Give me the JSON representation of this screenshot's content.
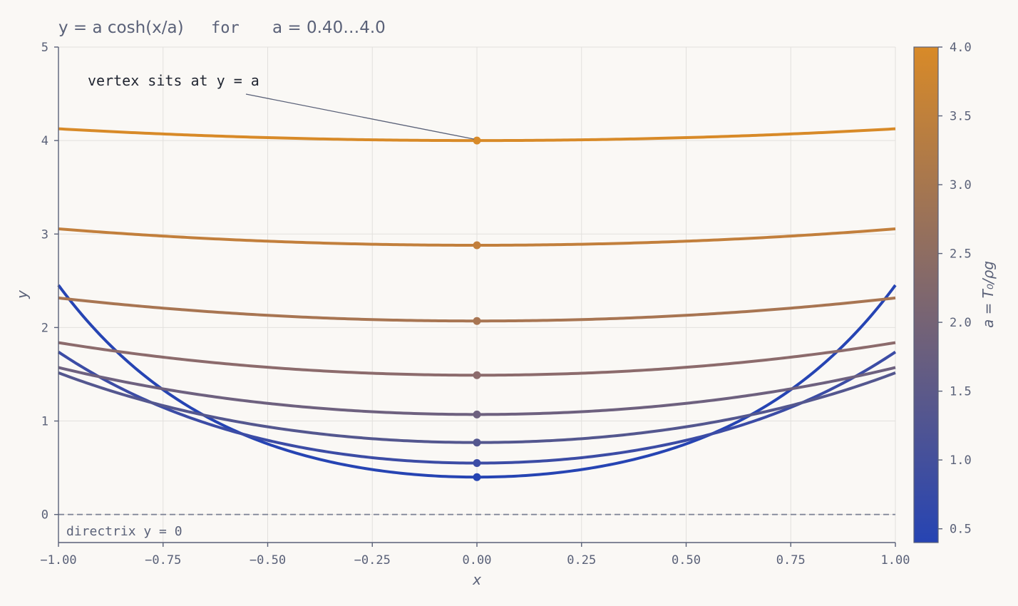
{
  "title": {
    "formula": "y = a cosh(x/a)",
    "for_word": "for",
    "range": "a = 0.40…4.0"
  },
  "chart_data": {
    "type": "line",
    "title": "y = a cosh(x/a)   for   a = 0.40…4.0",
    "xlabel": "x",
    "ylabel": "y",
    "xlim": [
      -1.0,
      1.0
    ],
    "ylim": [
      -0.3,
      5.0
    ],
    "xticks": [
      -1.0,
      -0.75,
      -0.5,
      -0.25,
      0.0,
      0.25,
      0.5,
      0.75,
      1.0
    ],
    "xtick_labels": [
      "−1.00",
      "−0.75",
      "−0.50",
      "−0.25",
      "0.00",
      "0.25",
      "0.50",
      "0.75",
      "1.00"
    ],
    "yticks": [
      0,
      1,
      2,
      3,
      4,
      5
    ],
    "ytick_labels": [
      "0",
      "1",
      "2",
      "3",
      "4",
      "5"
    ],
    "grid": true,
    "function": "y = a*cosh(x/a)",
    "series": [
      {
        "a": 0.4,
        "color": "#2644b3",
        "vertex": [
          0.0,
          0.4
        ]
      },
      {
        "a": 0.55,
        "color": "#3c4ca5",
        "vertex": [
          0.0,
          0.55
        ]
      },
      {
        "a": 0.77,
        "color": "#54578f",
        "vertex": [
          0.0,
          0.77
        ]
      },
      {
        "a": 1.07,
        "color": "#6e617f",
        "vertex": [
          0.0,
          1.07
        ]
      },
      {
        "a": 1.49,
        "color": "#8c6b6c",
        "vertex": [
          0.0,
          1.49
        ]
      },
      {
        "a": 2.07,
        "color": "#a87552",
        "vertex": [
          0.0,
          2.07
        ]
      },
      {
        "a": 2.88,
        "color": "#c27f3c",
        "vertex": [
          0.0,
          2.88
        ]
      },
      {
        "a": 4.0,
        "color": "#d88a28",
        "vertex": [
          0.0,
          4.0
        ]
      }
    ],
    "directrix": {
      "y": 0,
      "label": "directrix   y = 0"
    },
    "annotation": {
      "text": "vertex sits at  y = a",
      "target": [
        0.0,
        4.0
      ]
    },
    "colorbar": {
      "label": "a = T₀/ρg",
      "range": [
        0.4,
        4.0
      ],
      "ticks": [
        0.5,
        1.0,
        1.5,
        2.0,
        2.5,
        3.0,
        3.5,
        4.0
      ],
      "tick_labels": [
        "0.5",
        "1.0",
        "1.5",
        "2.0",
        "2.5",
        "3.0",
        "3.5",
        "4.0"
      ],
      "color_low": "#2644b3",
      "color_high": "#d88a28"
    }
  }
}
